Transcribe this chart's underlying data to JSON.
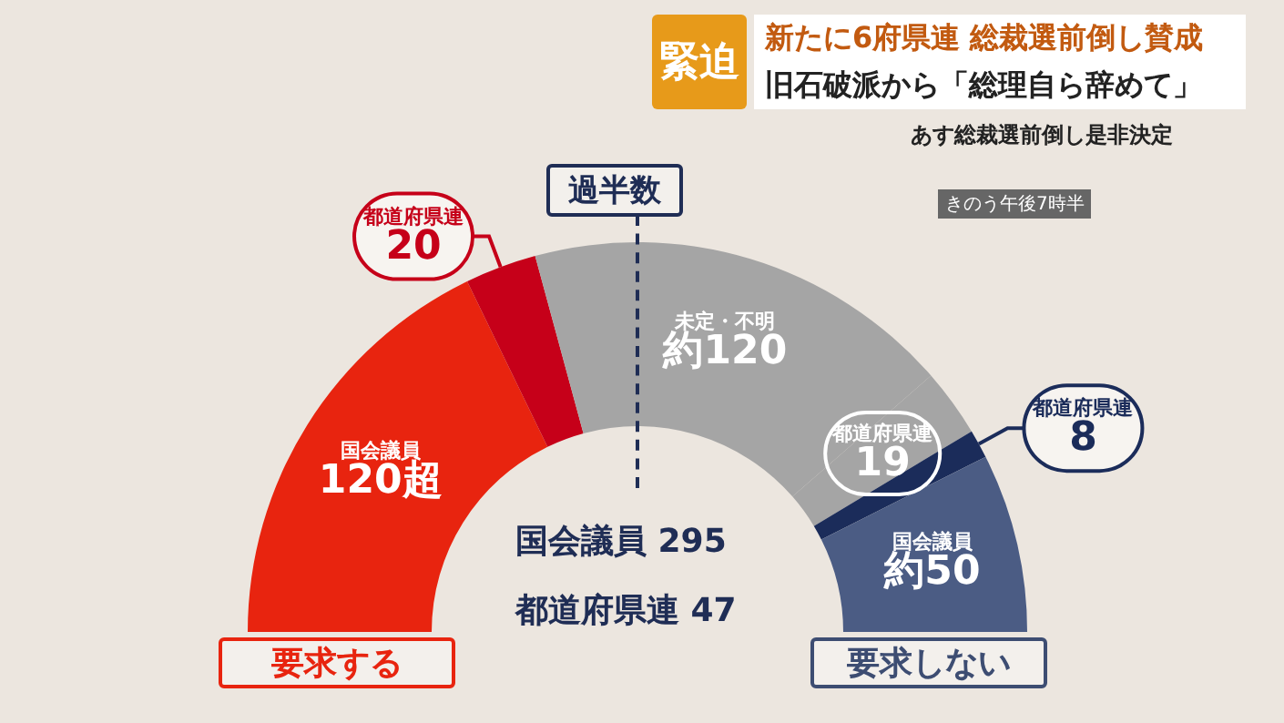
{
  "chart_data": {
    "type": "donut",
    "categories": [
      "国会議員",
      "都道府県連",
      "未定・不明",
      "都道府県連",
      "都道府県連",
      "国会議員"
    ],
    "values": [
      120,
      20,
      120,
      19,
      8,
      50
    ],
    "value_labels": [
      "120超",
      "20",
      "約120",
      "19",
      "8",
      "約50"
    ],
    "colors": [
      "#e8240f",
      "#c60019",
      "#a5a5a5",
      "#a5a5a5",
      "#1b2c5a",
      "#4b5c84"
    ],
    "legend": false,
    "annotations": [
      "緊迫",
      "新たに6府県連 総裁選前倒し賛成",
      "旧石破派から「総理自ら辞めて」",
      "あす総裁選前倒し是非決定",
      "きのう午後7時半",
      "過半数",
      "国会議員 295",
      "都道府県連 47",
      "要求する",
      "要求しない"
    ]
  }
}
